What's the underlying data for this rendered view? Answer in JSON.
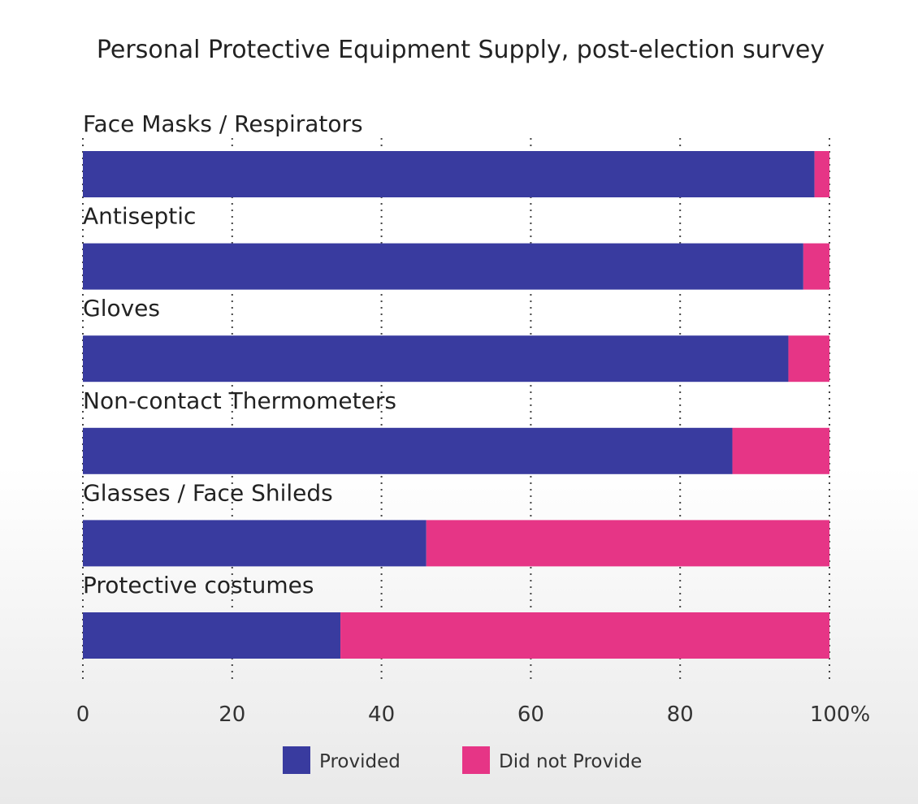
{
  "chart_data": {
    "type": "bar",
    "orientation": "horizontal",
    "stacked": true,
    "title": "Personal Protective Equipment Supply, post-election survey",
    "categories": [
      "Face Masks / Respirators",
      "Antiseptic",
      "Gloves",
      "Non-contact Thermometers",
      "Glasses / Face Shileds",
      "Protective costumes"
    ],
    "series": [
      {
        "name": "Provided",
        "color": "#393b9f",
        "values": [
          98,
          96.5,
          94.5,
          87,
          46,
          34.5
        ]
      },
      {
        "name": "Did not Provide",
        "color": "#e63586",
        "values": [
          2,
          3.5,
          5.5,
          13,
          54,
          65.5
        ]
      }
    ],
    "xlim": [
      0,
      100
    ],
    "xticks": [
      "0",
      "20",
      "40",
      "60",
      "80",
      "100%"
    ],
    "grid": true,
    "legend": "bottom-center"
  }
}
